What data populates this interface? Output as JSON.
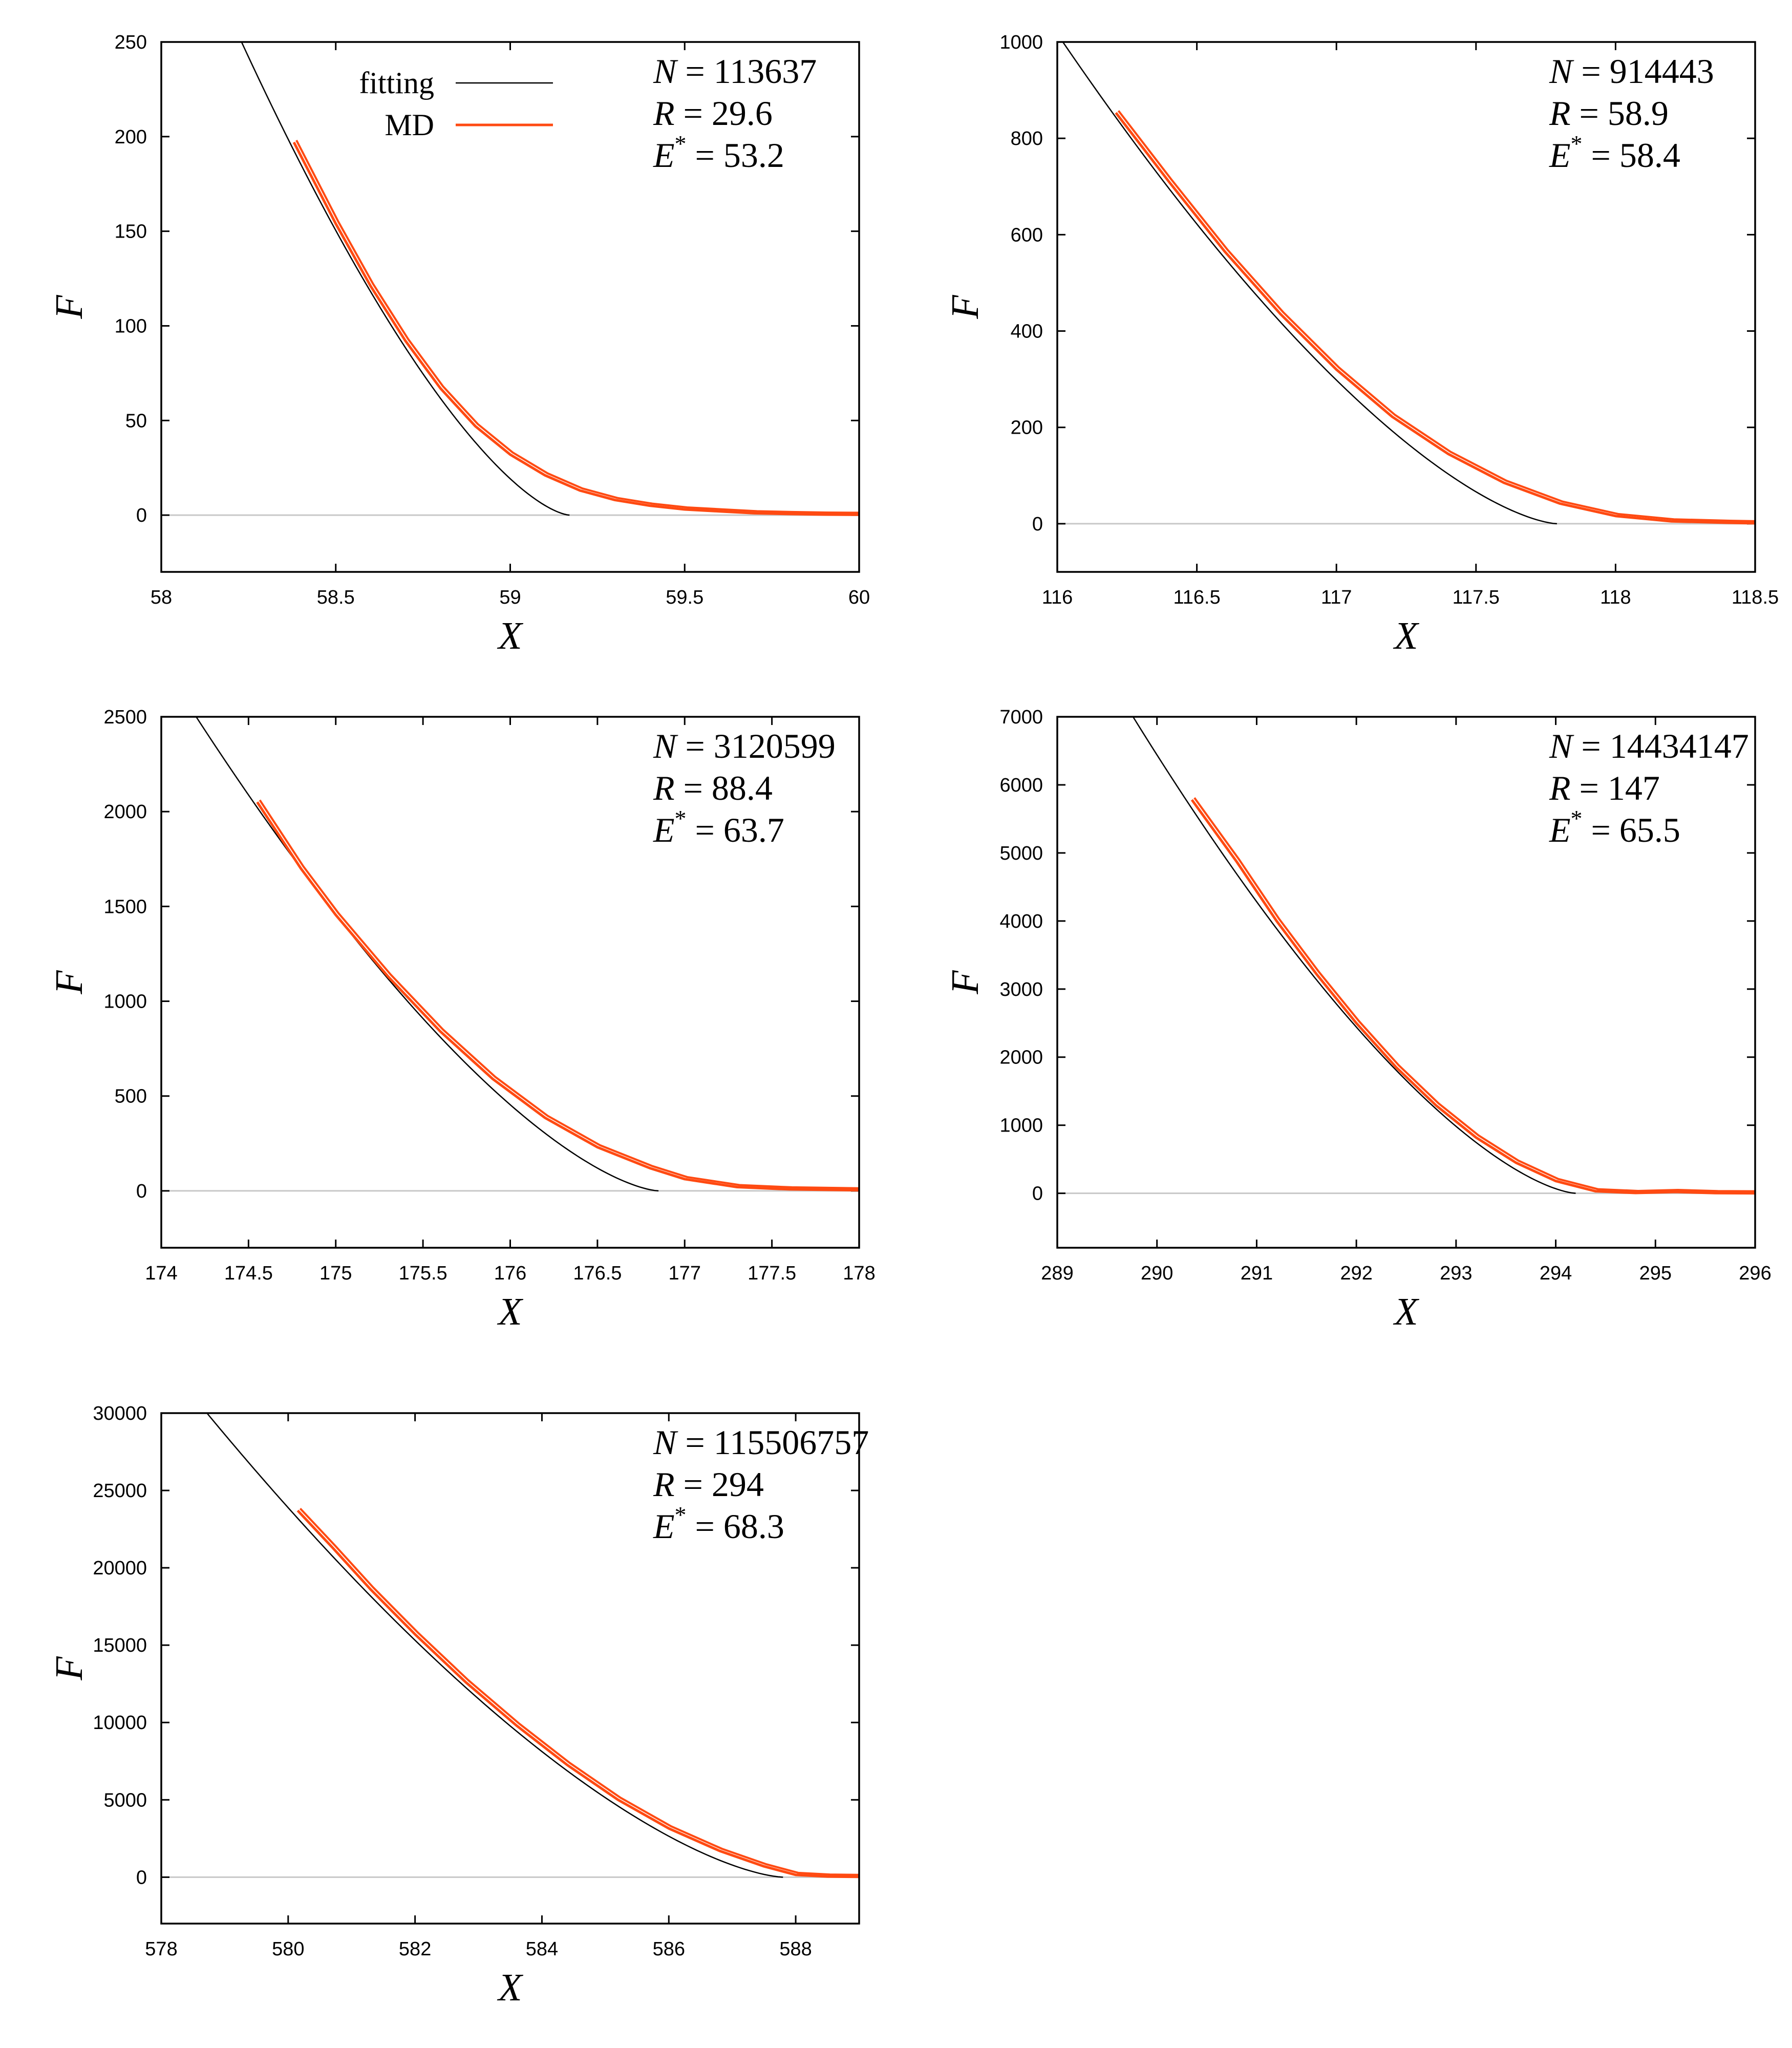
{
  "colors": {
    "fitting": "#000000",
    "md": "#ff4a12",
    "zero_line": "#c8c8c8",
    "frame": "#000000"
  },
  "legend": {
    "fitting_label": "fitting",
    "md_label": "MD"
  },
  "chart_data": [
    {
      "type": "line",
      "xlabel": "X",
      "ylabel": "F",
      "xlim": [
        58,
        60
      ],
      "ylim": [
        -30,
        250
      ],
      "xticks": [
        58,
        58.5,
        59,
        59.5,
        60
      ],
      "yticks": [
        0,
        50,
        100,
        150,
        200,
        250
      ],
      "annotation": {
        "N": "113637",
        "R": "29.6",
        "E": "53.2"
      },
      "legend": true,
      "fitting": {
        "x0": 59.17,
        "x_start": 58.23,
        "y_start": 250
      },
      "md": {
        "x": [
          58.38,
          58.5,
          58.6,
          58.7,
          58.8,
          58.9,
          59.0,
          59.1,
          59.2,
          59.3,
          59.4,
          59.5,
          59.6,
          59.7,
          59.8,
          59.9,
          60.0
        ],
        "y": [
          197,
          154,
          121,
          92,
          67,
          47,
          32,
          21,
          13,
          8,
          5,
          3,
          2,
          1,
          0.6,
          0.3,
          0.2
        ]
      }
    },
    {
      "type": "line",
      "xlabel": "X",
      "ylabel": "F",
      "xlim": [
        116,
        118.5
      ],
      "ylim": [
        -100,
        1000
      ],
      "xticks": [
        116,
        116.5,
        117,
        117.5,
        118,
        118.5
      ],
      "yticks": [
        0,
        200,
        400,
        600,
        800,
        1000
      ],
      "annotation": {
        "N": "914443",
        "R": "58.9",
        "E": "58.4"
      },
      "legend": false,
      "fitting": {
        "x0": 117.79,
        "x_start": 116.02,
        "y_start": 1000
      },
      "md": {
        "x": [
          116.21,
          116.4,
          116.6,
          116.8,
          117.0,
          117.2,
          117.4,
          117.6,
          117.8,
          118.0,
          118.2,
          118.4,
          118.5
        ],
        "y": [
          853,
          710,
          565,
          435,
          320,
          222,
          145,
          85,
          42,
          16,
          5,
          2,
          1
        ]
      }
    },
    {
      "type": "line",
      "xlabel": "X",
      "ylabel": "F",
      "xlim": [
        174,
        178
      ],
      "ylim": [
        -300,
        2500
      ],
      "xticks": [
        174,
        174.5,
        175,
        175.5,
        176,
        176.5,
        177,
        177.5,
        178
      ],
      "yticks": [
        0,
        500,
        1000,
        1500,
        2000,
        2500
      ],
      "annotation": {
        "N": "3120599",
        "R": "88.4",
        "E": "63.7"
      },
      "legend": false,
      "fitting": {
        "x0": 176.85,
        "x_start": 174.2,
        "y_start": 2500
      },
      "md": {
        "x": [
          174.55,
          174.8,
          175.0,
          175.3,
          175.6,
          175.9,
          176.2,
          176.5,
          176.8,
          177.0,
          177.3,
          177.6,
          178.0
        ],
        "y": [
          2050,
          1700,
          1455,
          1130,
          840,
          590,
          385,
          230,
          120,
          62,
          20,
          8,
          3
        ]
      }
    },
    {
      "type": "line",
      "xlabel": "X",
      "ylabel": "F",
      "xlim": [
        289,
        296
      ],
      "ylim": [
        -800,
        7000
      ],
      "xticks": [
        289,
        290,
        291,
        292,
        293,
        294,
        295,
        296
      ],
      "yticks": [
        0,
        1000,
        2000,
        3000,
        4000,
        5000,
        6000,
        7000
      ],
      "annotation": {
        "N": "14434147",
        "R": "147",
        "E": "65.5"
      },
      "legend": false,
      "fitting": {
        "x0": 294.2,
        "x_start": 289.76,
        "y_start": 7000
      },
      "md": {
        "x": [
          290.35,
          290.8,
          291.2,
          291.6,
          292.0,
          292.4,
          292.8,
          293.2,
          293.6,
          294.0,
          294.4,
          294.8,
          295.2,
          295.6,
          296.0
        ],
        "y": [
          5780,
          4870,
          4000,
          3220,
          2500,
          1850,
          1290,
          820,
          450,
          180,
          30,
          5,
          20,
          3,
          0
        ]
      }
    },
    {
      "type": "line",
      "xlabel": "X",
      "ylabel": "F",
      "xlim": [
        578,
        589
      ],
      "ylim": [
        -3000,
        30000
      ],
      "xticks": [
        578,
        580,
        582,
        584,
        586,
        588
      ],
      "yticks": [
        0,
        5000,
        10000,
        15000,
        20000,
        25000,
        30000
      ],
      "annotation": {
        "N": "115506757",
        "R": "294",
        "E": "68.3"
      },
      "legend": false,
      "fitting": {
        "x0": 587.8,
        "x_start": 578.72,
        "y_start": 30000
      },
      "md": {
        "x": [
          580.15,
          580.7,
          581.3,
          582.0,
          582.8,
          583.6,
          584.4,
          585.2,
          586.0,
          586.8,
          587.5,
          588.0,
          588.5,
          589.0
        ],
        "y": [
          23700,
          21300,
          18600,
          15700,
          12600,
          9800,
          7250,
          5000,
          3150,
          1700,
          700,
          150,
          40,
          20
        ]
      }
    }
  ]
}
